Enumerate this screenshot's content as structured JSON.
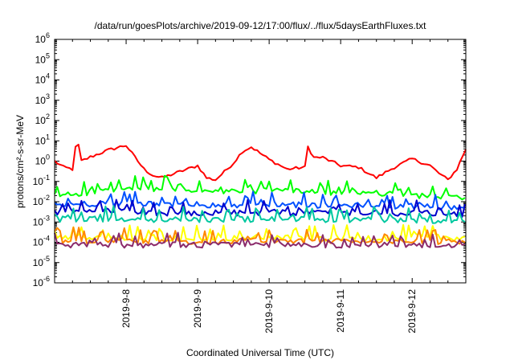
{
  "chart_data": {
    "type": "line",
    "title": "/data/run/goesPlots/archive/2019-09-12/17:00/flux/../flux/5daysEarthFluxes.txt",
    "xlabel": "Coordinated Universal Time (UTC)",
    "ylabel": "protons/cm²-s-sr-MeV",
    "y_scale": "log",
    "ylim": [
      1e-06,
      1000000.0
    ],
    "xlim": [
      "2019-09-07 00:00",
      "2019-09-12 18:00"
    ],
    "x_tick_labels": [
      "2019-9-8",
      "2019-9-9",
      "2019-9-10",
      "2019-9-11",
      "2019-9-12"
    ],
    "y_tick_labels": [
      {
        "base": "10",
        "exp": "-6"
      },
      {
        "base": "10",
        "exp": "-5"
      },
      {
        "base": "10",
        "exp": "-4"
      },
      {
        "base": "10",
        "exp": "-3"
      },
      {
        "base": "10",
        "exp": "-2"
      },
      {
        "base": "10",
        "exp": "-1"
      },
      {
        "base": "10",
        "exp": "0"
      },
      {
        "base": "10",
        "exp": "1"
      },
      {
        "base": "10",
        "exp": "2"
      },
      {
        "base": "10",
        "exp": "3"
      },
      {
        "base": "10",
        "exp": "4"
      },
      {
        "base": "10",
        "exp": "5"
      },
      {
        "base": "10",
        "exp": "6"
      }
    ],
    "grid": false,
    "legend": "none",
    "series": [
      {
        "color": "#ff0000",
        "x": [
          "2019-09-07 00:00",
          "2019-09-07 03:00",
          "2019-09-07 06:00",
          "2019-09-07 07:30",
          "2019-09-07 09:00",
          "2019-09-07 12:00",
          "2019-09-07 18:00",
          "2019-09-08 00:00",
          "2019-09-08 03:00",
          "2019-09-08 06:00",
          "2019-09-08 09:00",
          "2019-09-08 12:00",
          "2019-09-08 18:00",
          "2019-09-09 00:00",
          "2019-09-09 03:00",
          "2019-09-09 06:00",
          "2019-09-09 09:00",
          "2019-09-09 12:00",
          "2019-09-09 15:00",
          "2019-09-09 18:00",
          "2019-09-10 00:00",
          "2019-09-10 06:00",
          "2019-09-10 12:00",
          "2019-09-10 12:30",
          "2019-09-10 15:00",
          "2019-09-10 18:00",
          "2019-09-11 00:00",
          "2019-09-11 06:00",
          "2019-09-11 12:00",
          "2019-09-11 18:00",
          "2019-09-12 00:00",
          "2019-09-12 06:00",
          "2019-09-12 09:00",
          "2019-09-12 12:00",
          "2019-09-12 15:00",
          "2019-09-12 18:00"
        ],
        "values": [
          1.0,
          0.5,
          0.4,
          15,
          1.0,
          1.6,
          3.5,
          6.0,
          1.5,
          0.4,
          0.2,
          0.15,
          0.3,
          0.6,
          0.15,
          0.12,
          0.3,
          0.8,
          3.0,
          5.0,
          1.2,
          0.4,
          0.5,
          7.0,
          1.5,
          1.5,
          0.6,
          0.5,
          0.15,
          0.5,
          1.3,
          0.6,
          0.25,
          0.12,
          0.4,
          4.0
        ]
      },
      {
        "color": "#00ff00",
        "x": [
          "2019-09-07 00:00",
          "2019-09-07 18:00",
          "2019-09-08 12:00",
          "2019-09-09 06:00",
          "2019-09-10 00:00",
          "2019-09-10 18:00",
          "2019-09-11 12:00",
          "2019-09-12 06:00",
          "2019-09-12 18:00"
        ],
        "values": [
          0.02,
          0.04,
          0.05,
          0.03,
          0.04,
          0.03,
          0.03,
          0.02,
          0.015
        ]
      },
      {
        "color": "#0050ff",
        "x": [
          "2019-09-07 00:00",
          "2019-09-07 18:00",
          "2019-09-08 12:00",
          "2019-09-09 06:00",
          "2019-09-10 00:00",
          "2019-09-10 18:00",
          "2019-09-11 12:00",
          "2019-09-12 06:00",
          "2019-09-12 18:00"
        ],
        "values": [
          0.007,
          0.009,
          0.008,
          0.007,
          0.008,
          0.007,
          0.007,
          0.006,
          0.005
        ]
      },
      {
        "color": "#0000cc",
        "x": [
          "2019-09-07 00:00",
          "2019-09-07 18:00",
          "2019-09-08 12:00",
          "2019-09-09 06:00",
          "2019-09-10 00:00",
          "2019-09-10 18:00",
          "2019-09-11 12:00",
          "2019-09-12 06:00",
          "2019-09-12 18:00"
        ],
        "values": [
          0.003,
          0.004,
          0.003,
          0.003,
          0.003,
          0.003,
          0.003,
          0.003,
          0.0025
        ]
      },
      {
        "color": "#00c8a0",
        "x": [
          "2019-09-07 00:00",
          "2019-09-07 18:00",
          "2019-09-08 12:00",
          "2019-09-09 06:00",
          "2019-09-10 00:00",
          "2019-09-10 18:00",
          "2019-09-11 12:00",
          "2019-09-12 06:00",
          "2019-09-12 18:00"
        ],
        "values": [
          0.0015,
          0.0015,
          0.0014,
          0.0014,
          0.0015,
          0.0014,
          0.0014,
          0.0013,
          0.0012
        ]
      },
      {
        "color": "#ffff00",
        "x": [
          "2019-09-07 00:00",
          "2019-09-07 18:00",
          "2019-09-08 12:00",
          "2019-09-09 06:00",
          "2019-09-10 00:00",
          "2019-09-10 18:00",
          "2019-09-11 12:00",
          "2019-09-12 06:00",
          "2019-09-12 18:00"
        ],
        "values": [
          0.00018,
          0.00018,
          0.00017,
          0.00017,
          0.00018,
          0.00017,
          0.00017,
          0.00018,
          0.00017
        ]
      },
      {
        "color": "#ff8800",
        "x": [
          "2019-09-07 00:00",
          "2019-09-07 18:00",
          "2019-09-08 12:00",
          "2019-09-09 06:00",
          "2019-09-10 00:00",
          "2019-09-10 18:00",
          "2019-09-11 12:00",
          "2019-09-12 06:00",
          "2019-09-12 18:00"
        ],
        "values": [
          0.00013,
          0.00013,
          0.00012,
          0.00012,
          0.00013,
          0.00012,
          0.00012,
          0.00012,
          0.00012
        ]
      },
      {
        "color": "#8b2b6b",
        "x": [
          "2019-09-07 00:00",
          "2019-09-07 18:00",
          "2019-09-08 12:00",
          "2019-09-09 06:00",
          "2019-09-10 00:00",
          "2019-09-10 18:00",
          "2019-09-11 12:00",
          "2019-09-12 06:00",
          "2019-09-12 18:00"
        ],
        "values": [
          8e-05,
          8e-05,
          8e-05,
          8e-05,
          8e-05,
          8e-05,
          8e-05,
          8e-05,
          8e-05
        ]
      }
    ]
  }
}
